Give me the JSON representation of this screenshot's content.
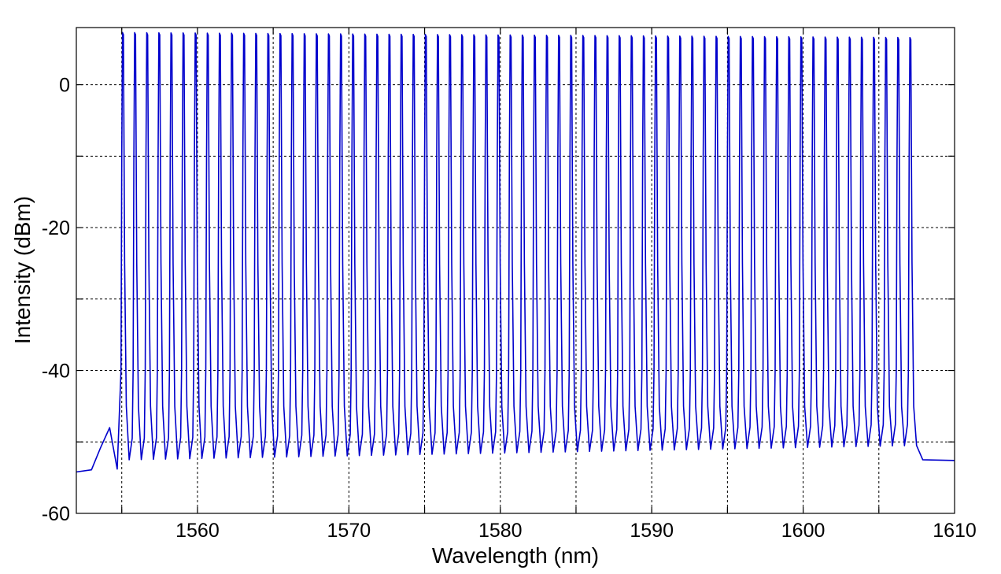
{
  "chart_data": {
    "type": "line",
    "title": "",
    "xlabel": "Wavelength (nm)",
    "ylabel": "Intensity (dBm)",
    "xlim": [
      1552,
      1610
    ],
    "ylim": [
      -60,
      8
    ],
    "xticks": [
      1560,
      1570,
      1580,
      1590,
      1600,
      1610
    ],
    "yticks": [
      -60,
      -40,
      -20,
      0
    ],
    "grid": true,
    "line_color": "#0000cc",
    "series": [
      {
        "baseline_left": [
          {
            "x": 1552.0,
            "y": -54.2
          },
          {
            "x": 1553.0,
            "y": -53.9
          },
          {
            "x": 1553.6,
            "y": -50.8
          },
          {
            "x": 1554.2,
            "y": -48.0
          },
          {
            "x": 1554.7,
            "y": -53.8
          }
        ],
        "comb": {
          "start": 1555.05,
          "spacing": 0.8,
          "count": 66,
          "peak_first": 7.3,
          "peak_last": 6.6,
          "floor_first": -52.5,
          "floor_last": -50.5
        },
        "baseline_right": [
          {
            "x": 1607.9,
            "y": -52.5
          },
          {
            "x": 1610.0,
            "y": -52.6
          }
        ]
      }
    ]
  }
}
